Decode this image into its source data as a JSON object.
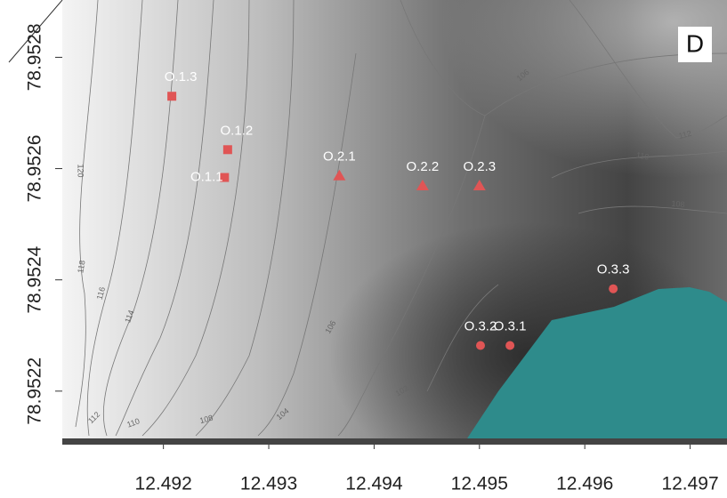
{
  "chart_data": {
    "type": "scatter",
    "panel_label": "D",
    "xlim": [
      12.49104,
      12.49735
    ],
    "ylim": [
      78.952115,
      78.952903
    ],
    "xticks": [
      12.492,
      12.493,
      12.494,
      12.495,
      12.496,
      12.497
    ],
    "yticks": [
      78.9522,
      78.9524,
      78.9526,
      78.9528
    ],
    "series": [
      {
        "marker": "square",
        "color": "#e05555",
        "labels": [
          "O.1.1",
          "O.1.2",
          "O.1.3"
        ],
        "x": [
          12.49258,
          12.49261,
          12.49208
        ],
        "y": [
          78.952584,
          78.952634,
          78.95273
        ]
      },
      {
        "marker": "triangle",
        "color": "#e05555",
        "labels": [
          "O.2.1",
          "O.2.2",
          "O.2.3"
        ],
        "x": [
          12.49367,
          12.49446,
          12.495
        ],
        "y": [
          78.952587,
          78.952569,
          78.952569
        ]
      },
      {
        "marker": "circle",
        "color": "#e05555",
        "labels": [
          "O.3.1",
          "O.3.2",
          "O.3.3"
        ],
        "x": [
          12.49529,
          12.49501,
          12.49627
        ],
        "y": [
          78.952282,
          78.952282,
          78.952384
        ]
      }
    ],
    "contour_labels": [
      "120",
      "118",
      "116",
      "114",
      "112",
      "110",
      "108",
      "106",
      "104",
      "102",
      "106",
      "112",
      "110",
      "108"
    ]
  }
}
